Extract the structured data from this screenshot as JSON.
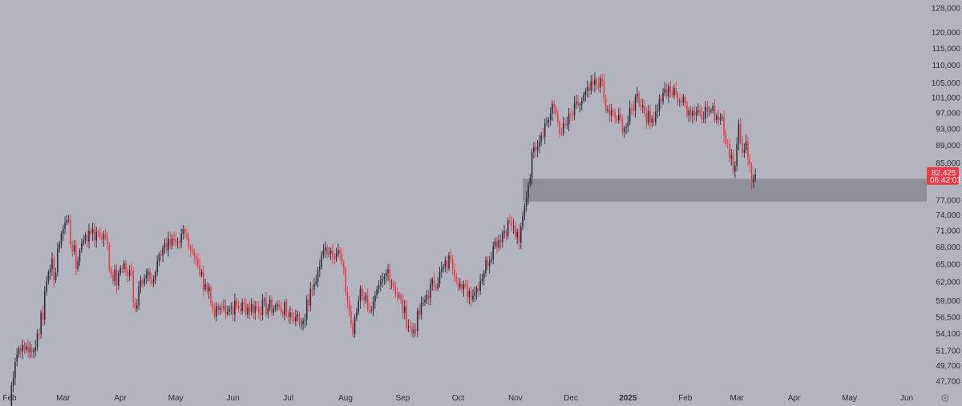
{
  "chart_data": {
    "type": "candlestick",
    "y_scale": "log",
    "ylim": [
      45800,
      131000
    ],
    "xlim": [
      "2024-02-01",
      "2025-06-20"
    ],
    "y_ticks": [
      47700,
      49700,
      51700,
      54100,
      56500,
      59000,
      62000,
      65000,
      68000,
      71000,
      74000,
      77000,
      85000,
      89000,
      93000,
      97000,
      101000,
      105000,
      110000,
      115000,
      120000,
      128000
    ],
    "y_tick_labels": [
      "47,700",
      "49,700",
      "51,700",
      "54,100",
      "56,500",
      "59,000",
      "62,000",
      "65,000",
      "68,000",
      "71,000",
      "74,000",
      "77,000",
      "85,000",
      "89,000",
      "93,000",
      "97,000",
      "101,000",
      "105,000",
      "110,000",
      "115,000",
      "120,000",
      "128,000"
    ],
    "x_ticks": [
      {
        "label": "Feb",
        "date": "2024-02-01",
        "bold": false
      },
      {
        "label": "Mar",
        "date": "2024-03-01",
        "bold": false
      },
      {
        "label": "Apr",
        "date": "2024-04-01",
        "bold": false
      },
      {
        "label": "May",
        "date": "2024-05-01",
        "bold": false
      },
      {
        "label": "Jun",
        "date": "2024-06-01",
        "bold": false
      },
      {
        "label": "Jul",
        "date": "2024-07-01",
        "bold": false
      },
      {
        "label": "Aug",
        "date": "2024-08-01",
        "bold": false
      },
      {
        "label": "Sep",
        "date": "2024-09-01",
        "bold": false
      },
      {
        "label": "Oct",
        "date": "2024-10-01",
        "bold": false
      },
      {
        "label": "Nov",
        "date": "2024-11-01",
        "bold": false
      },
      {
        "label": "Dec",
        "date": "2024-12-01",
        "bold": false
      },
      {
        "label": "2025",
        "date": "2025-01-01",
        "bold": true
      },
      {
        "label": "Feb",
        "date": "2025-02-01",
        "bold": false
      },
      {
        "label": "Mar",
        "date": "2025-03-01",
        "bold": false
      },
      {
        "label": "Apr",
        "date": "2025-04-01",
        "bold": false
      },
      {
        "label": "May",
        "date": "2025-05-01",
        "bold": false
      },
      {
        "label": "Jun",
        "date": "2025-06-01",
        "bold": false
      }
    ],
    "series": [
      {
        "start_date": "2024-02-01",
        "interval": "1 day",
        "closes": [
          43000,
          47200,
          48100,
          50200,
          51200,
          52000,
          51600,
          52500,
          51800,
          52300,
          51500,
          52100,
          51500,
          51700,
          52200,
          54100,
          54000,
          57200,
          56100,
          60500,
          62100,
          63600,
          64200,
          66000,
          62300,
          63600,
          67700,
          68500,
          70500,
          71400,
          72500,
          73000,
          73100,
          68500,
          67200,
          68300,
          64200,
          65500,
          67400,
          68700,
          69200,
          70200,
          69000,
          71000,
          70500,
          71300,
          69200,
          70800,
          70600,
          69700,
          69400,
          70300,
          69800,
          68500,
          64200,
          63300,
          62200,
          64100,
          61400,
          63500,
          64400,
          64200,
          65200,
          63800,
          63000,
          64000,
          63900,
          58800,
          57800,
          58300,
          61300,
          62300,
          61800,
          62600,
          63100,
          63800,
          62500,
          61800,
          62400,
          63600,
          65500,
          66700,
          66500,
          67900,
          68700,
          67500,
          69500,
          68300,
          69600,
          69300,
          68900,
          69000,
          68800,
          70400,
          71300,
          70500,
          69700,
          68100,
          67600,
          67200,
          66400,
          65800,
          64900,
          63200,
          63700,
          60800,
          61600,
          60500,
          61200,
          58600,
          57800,
          56600,
          58200,
          57600,
          58000
        ],
        "close_start": "2024-02-01"
      }
    ],
    "last_price_label": "82,425",
    "countdown_label": "06:42:01",
    "zone": {
      "y_low": 76700,
      "y_high": 81500,
      "x_from": "2024-11-05",
      "x_to": "2025-06-20"
    }
  },
  "colors": {
    "background": "#b2b5be",
    "up": "#2a2e39",
    "down": "#f23645",
    "zone_fill": "#8e9099",
    "price_tag_bg": "#f23645",
    "axis_text": "#2a2e39"
  }
}
